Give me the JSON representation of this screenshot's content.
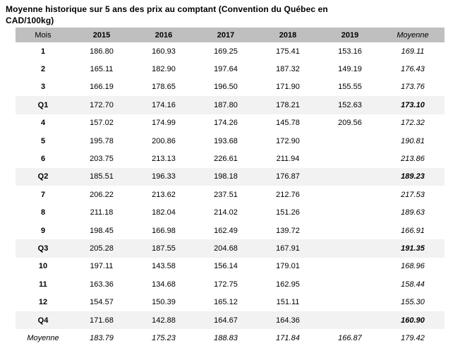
{
  "title": {
    "line1": "Moyenne historique sur 5 ans des prix au comptant (Convention du Québec en",
    "line2": "CAD/100kg)"
  },
  "colors": {
    "header_bg": "#bfbfbf",
    "quarter_row_bg": "#f2f2f2",
    "text": "#000000"
  },
  "table": {
    "columns": [
      "Mois",
      "2015",
      "2016",
      "2017",
      "2018",
      "2019",
      "Moyenne"
    ],
    "rows": [
      {
        "label": "1",
        "type": "month",
        "values": [
          "186.80",
          "160.93",
          "169.25",
          "175.41",
          "153.16",
          "169.11"
        ]
      },
      {
        "label": "2",
        "type": "month",
        "values": [
          "165.11",
          "182.90",
          "197.64",
          "187.32",
          "149.19",
          "176.43"
        ]
      },
      {
        "label": "3",
        "type": "month",
        "values": [
          "166.19",
          "178.65",
          "196.50",
          "171.90",
          "155.55",
          "173.76"
        ]
      },
      {
        "label": "Q1",
        "type": "quarter",
        "values": [
          "172.70",
          "174.16",
          "187.80",
          "178.21",
          "152.63",
          "173.10"
        ]
      },
      {
        "label": "4",
        "type": "month",
        "values": [
          "157.02",
          "174.99",
          "174.26",
          "145.78",
          "209.56",
          "172.32"
        ]
      },
      {
        "label": "5",
        "type": "month",
        "values": [
          "195.78",
          "200.86",
          "193.68",
          "172.90",
          "",
          "190.81"
        ]
      },
      {
        "label": "6",
        "type": "month",
        "values": [
          "203.75",
          "213.13",
          "226.61",
          "211.94",
          "",
          "213.86"
        ]
      },
      {
        "label": "Q2",
        "type": "quarter",
        "values": [
          "185.51",
          "196.33",
          "198.18",
          "176.87",
          "",
          "189.23"
        ]
      },
      {
        "label": "7",
        "type": "month",
        "values": [
          "206.22",
          "213.62",
          "237.51",
          "212.76",
          "",
          "217.53"
        ]
      },
      {
        "label": "8",
        "type": "month",
        "values": [
          "211.18",
          "182.04",
          "214.02",
          "151.26",
          "",
          "189.63"
        ]
      },
      {
        "label": "9",
        "type": "month",
        "values": [
          "198.45",
          "166.98",
          "162.49",
          "139.72",
          "",
          "166.91"
        ]
      },
      {
        "label": "Q3",
        "type": "quarter",
        "values": [
          "205.28",
          "187.55",
          "204.68",
          "167.91",
          "",
          "191.35"
        ]
      },
      {
        "label": "10",
        "type": "month",
        "values": [
          "197.11",
          "143.58",
          "156.14",
          "179.01",
          "",
          "168.96"
        ]
      },
      {
        "label": "11",
        "type": "month",
        "values": [
          "163.36",
          "134.68",
          "172.75",
          "162.95",
          "",
          "158.44"
        ]
      },
      {
        "label": "12",
        "type": "month",
        "values": [
          "154.57",
          "150.39",
          "165.12",
          "151.11",
          "",
          "155.30"
        ]
      },
      {
        "label": "Q4",
        "type": "quarter",
        "values": [
          "171.68",
          "142.88",
          "164.67",
          "164.36",
          "",
          "160.90"
        ]
      },
      {
        "label": "Moyenne",
        "type": "average",
        "values": [
          "183.79",
          "175.23",
          "188.83",
          "171.84",
          "166.87",
          "179.42"
        ]
      }
    ]
  }
}
